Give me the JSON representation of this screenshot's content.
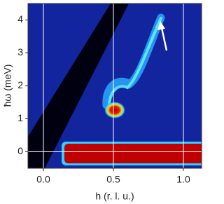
{
  "chart_data": {
    "type": "image",
    "x_label": "h (r. l. u.)",
    "y_label": "ħω (meV)",
    "xlim": [
      -0.11,
      1.13
    ],
    "ylim": [
      -0.5,
      4.5
    ],
    "xticks": [
      {
        "value": 0,
        "label": "0.0"
      },
      {
        "value": 0.5,
        "label": "0.5"
      },
      {
        "value": 1,
        "label": "1.0"
      }
    ],
    "yticks": [
      0,
      1,
      2,
      3,
      4
    ],
    "grid": true
  }
}
